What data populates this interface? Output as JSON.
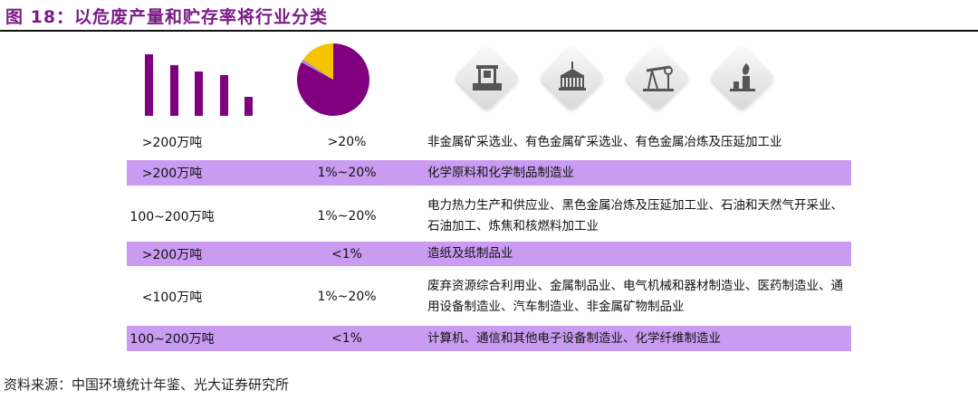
{
  "title": "图 18：以危废产量和贮存率将行业分类",
  "bar_chart": {
    "type": "bar",
    "values": [
      68,
      56,
      49,
      45,
      21
    ],
    "color": "#800080"
  },
  "pie_chart": {
    "type": "pie",
    "slices": [
      {
        "value": 83,
        "color": "#800080"
      },
      {
        "value": 1.5,
        "color": "#b58ac0"
      },
      {
        "value": 15.5,
        "color": "#f5c400"
      }
    ]
  },
  "icons": [
    "factory-machinery-icon",
    "container-crane-icon",
    "oil-pump-icon",
    "refinery-flame-icon"
  ],
  "highlight_color": "#c99cf2",
  "rows": [
    {
      "output": ">200万吨",
      "storage": ">20%",
      "industries": "非金属矿采选业、有色金属矿采选业、有色金属冶炼及压延加工业",
      "highlight": false
    },
    {
      "output": ">200万吨",
      "storage": "1%~20%",
      "industries": "化学原料和化学制品制造业",
      "highlight": true
    },
    {
      "output": "100~200万吨",
      "storage": "1%~20%",
      "industries": "电力热力生产和供应业、黑色金属冶炼及压延加工业、石油和天然气开采业、石油加工、炼焦和核燃料加工业",
      "highlight": false
    },
    {
      "output": ">200万吨",
      "storage": "<1%",
      "industries": "造纸及纸制品业",
      "highlight": true
    },
    {
      "output": "<100万吨",
      "storage": "1%~20%",
      "industries": "废弃资源综合利用业、金属制品业、电气机械和器材制造业、医药制造业、通用设备制造业、汽车制造业、非金属矿物制品业",
      "highlight": false
    },
    {
      "output": "100~200万吨",
      "storage": "<1%",
      "industries": "计算机、通信和其他电子设备制造业、化学纤维制造业",
      "highlight": true
    }
  ],
  "source": "资料来源：中国环境统计年鉴、光大证券研究所"
}
